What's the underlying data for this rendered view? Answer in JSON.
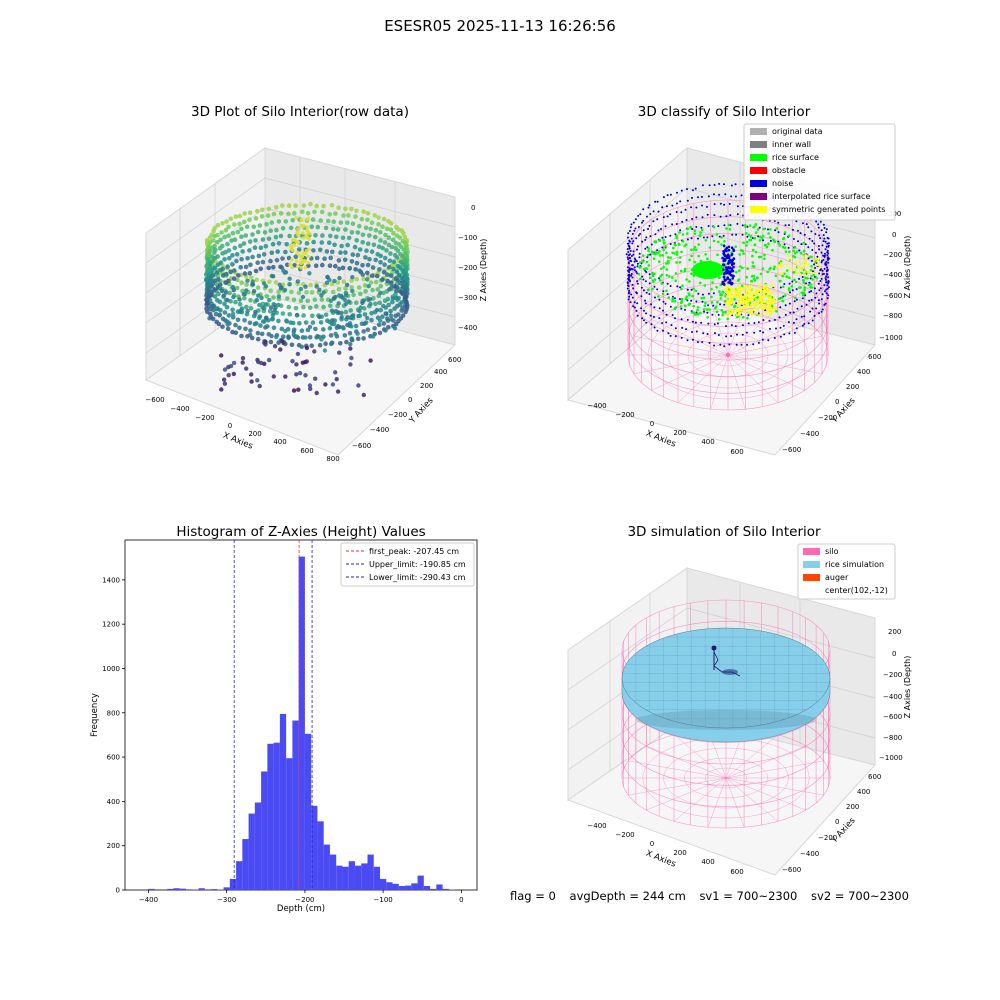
{
  "suptitle": "ESESR05 2025-11-13 16:26:56",
  "status": {
    "flag": "flag = 0",
    "avg_depth": "avgDepth = 244 cm",
    "sv1": "sv1 = 700~2300",
    "sv2": "sv2 = 700~2300"
  },
  "colors": {
    "histogram_bar": "#4b4bf5",
    "peak_line": "#e03030",
    "limit_line": "#2020c8",
    "silo": "#ff69b4",
    "rice_simulation": "#87ceeb",
    "auger": "#ff4500",
    "original_data": "#b0b0b0",
    "inner_wall": "#808080",
    "rice_surface": "#00ff00",
    "obstacle": "#ff0000",
    "noise": "#0000dd",
    "interpolated_rice_surface": "#800080",
    "symmetric_generated_points": "#ffff00"
  },
  "chart_data": [
    {
      "type": "scatter",
      "title": "3D Plot of Silo Interior(row data)",
      "xlabel": "X Axies",
      "ylabel": "Y Axies",
      "zlabel": "Z Axies (Depth)",
      "x_ticks": [
        "−600",
        "−400",
        "−200",
        "0",
        "200",
        "400",
        "600",
        "800"
      ],
      "y_ticks": [
        "−600",
        "−400",
        "−200",
        "0",
        "200",
        "400",
        "600"
      ],
      "z_ticks": [
        "−400",
        "−300",
        "−200",
        "−100",
        "0"
      ],
      "colormap": "viridis",
      "grid": true
    },
    {
      "type": "scatter",
      "title": "3D classify of Silo Interior",
      "xlabel": "X Axies",
      "ylabel": "Y Axies",
      "zlabel": "Z Axies (Depth)",
      "x_ticks": [
        "−400",
        "−200",
        "0",
        "200",
        "400",
        "600"
      ],
      "y_ticks": [
        "−600",
        "−400",
        "−200",
        "0",
        "200",
        "400",
        "600"
      ],
      "z_ticks": [
        "−1000",
        "−800",
        "−600",
        "−400",
        "−200",
        "0",
        "200"
      ],
      "legend": [
        "original data",
        "inner wall",
        "rice surface",
        "obstacle",
        "noise",
        "interpolated rice surface",
        "symmetric generated points"
      ],
      "legend_position": "top-right",
      "grid": true
    },
    {
      "type": "bar",
      "title": "Histogram of Z-Axies (Height) Values",
      "xlabel": "Depth (cm)",
      "ylabel": "Frequency",
      "xlim": [
        -430,
        20
      ],
      "ylim": [
        0,
        1580
      ],
      "x_ticks": [
        -400,
        -300,
        -200,
        -100,
        0
      ],
      "y_ticks": [
        0,
        200,
        400,
        600,
        800,
        1000,
        1200,
        1400
      ],
      "bin_width": 8,
      "bins": [
        [
          -400,
          5
        ],
        [
          -392,
          3
        ],
        [
          -376,
          5
        ],
        [
          -368,
          8
        ],
        [
          -360,
          6
        ],
        [
          -352,
          3
        ],
        [
          -344,
          2
        ],
        [
          -336,
          8
        ],
        [
          -328,
          3
        ],
        [
          -320,
          4
        ],
        [
          -312,
          2
        ],
        [
          -304,
          12
        ],
        [
          -296,
          50
        ],
        [
          -288,
          130
        ],
        [
          -280,
          230
        ],
        [
          -272,
          345
        ],
        [
          -264,
          395
        ],
        [
          -256,
          535
        ],
        [
          -248,
          660
        ],
        [
          -240,
          665
        ],
        [
          -232,
          795
        ],
        [
          -224,
          595
        ],
        [
          -216,
          765
        ],
        [
          -208,
          1505
        ],
        [
          -200,
          705
        ],
        [
          -192,
          380
        ],
        [
          -184,
          310
        ],
        [
          -176,
          205
        ],
        [
          -168,
          160
        ],
        [
          -160,
          110
        ],
        [
          -152,
          105
        ],
        [
          -144,
          130
        ],
        [
          -136,
          110
        ],
        [
          -128,
          120
        ],
        [
          -120,
          160
        ],
        [
          -112,
          105
        ],
        [
          -104,
          50
        ],
        [
          -96,
          35
        ],
        [
          -88,
          28
        ],
        [
          -80,
          18
        ],
        [
          -72,
          20
        ],
        [
          -64,
          30
        ],
        [
          -56,
          65
        ],
        [
          -48,
          18
        ],
        [
          -40,
          5
        ],
        [
          -32,
          25
        ],
        [
          -24,
          5
        ],
        [
          -16,
          2
        ]
      ],
      "lines": [
        {
          "label": "first_peak: -207.45 cm",
          "x": -207.45,
          "color": "red"
        },
        {
          "label": "Upper_limit: -190.85 cm",
          "x": -190.85,
          "color": "blue"
        },
        {
          "label": "Lower_limit: -290.43 cm",
          "x": -290.43,
          "color": "blue"
        }
      ],
      "legend_position": "top-right"
    },
    {
      "type": "scatter",
      "title": "3D simulation of Silo Interior",
      "xlabel": "X Axies",
      "ylabel": "Y Axies",
      "zlabel": "Z Axies (Depth)",
      "x_ticks": [
        "−400",
        "−200",
        "0",
        "200",
        "400",
        "600"
      ],
      "y_ticks": [
        "−600",
        "−400",
        "−200",
        "0",
        "200",
        "400",
        "600"
      ],
      "z_ticks": [
        "−1000",
        "−800",
        "−600",
        "−400",
        "−200",
        "0",
        "200"
      ],
      "legend": [
        "silo",
        "rice simulation",
        "auger",
        "center(102,-12)"
      ],
      "legend_position": "top-right",
      "grid": true
    }
  ]
}
